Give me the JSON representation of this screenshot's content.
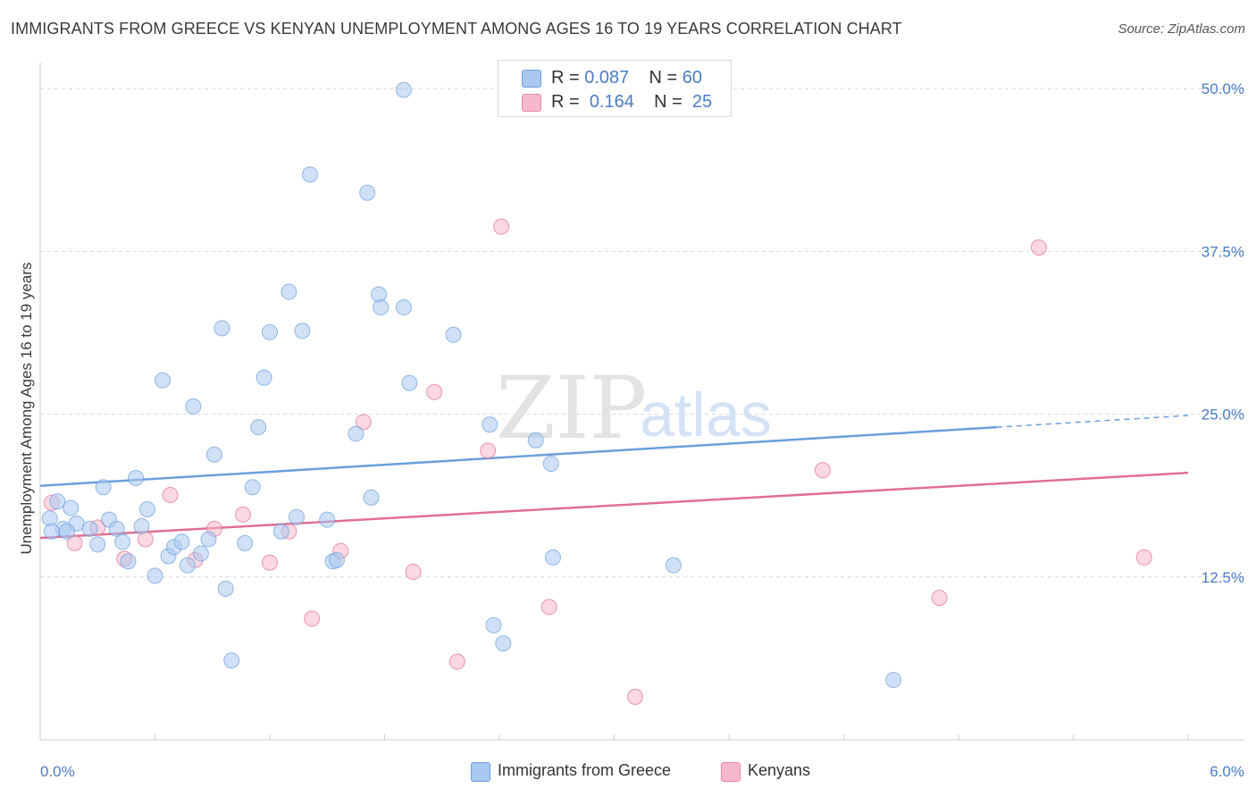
{
  "header": {
    "title": "IMMIGRANTS FROM GREECE VS KENYAN UNEMPLOYMENT AMONG AGES 16 TO 19 YEARS CORRELATION CHART",
    "source": "Source: ZipAtlas.com"
  },
  "watermark": {
    "zip": "ZIP",
    "atlas": "atlas"
  },
  "legend": {
    "rows": [
      {
        "r_label": "R = ",
        "r_value": "0.087",
        "n_label": "N = ",
        "n_value": "60",
        "color": "#a9c8f0"
      },
      {
        "r_label": "R = ",
        "r_value": "0.164",
        "n_label": "N = ",
        "n_value": "25",
        "color": "#f7b8cb"
      }
    ]
  },
  "bottom_legend": [
    {
      "label": "Immigrants from Greece",
      "color": "#a9c8f0"
    },
    {
      "label": "Kenyans",
      "color": "#f7b8cb"
    }
  ],
  "chart_data": {
    "type": "scatter",
    "title": "IMMIGRANTS FROM GREECE VS KENYAN UNEMPLOYMENT AMONG AGES 16 TO 19 YEARS CORRELATION CHART",
    "ylabel": "Unemployment Among Ages 16 to 19 years",
    "xlabel": "",
    "xlim": [
      0,
      6
    ],
    "ylim": [
      0,
      52
    ],
    "x_tick_labels": [
      {
        "value": 0,
        "label": "0.0%"
      },
      {
        "value": 6,
        "label": "6.0%"
      }
    ],
    "y_tick_labels": [
      {
        "value": 12.5,
        "label": "12.5%"
      },
      {
        "value": 25,
        "label": "25.0%"
      },
      {
        "value": 37.5,
        "label": "37.5%"
      },
      {
        "value": 50,
        "label": "50.0%"
      }
    ],
    "grid": true,
    "legend_position": "top-center",
    "series": [
      {
        "name": "Immigrants from Greece",
        "color": "#6a9edc",
        "fill": "#a9c8f0",
        "trend": {
          "x0": 0,
          "y0": 19.5,
          "x1": 5.0,
          "y1": 24.0,
          "dashed_to_x": 6.0,
          "dashed_to_y": 24.9
        },
        "points": [
          [
            0.05,
            17.0
          ],
          [
            0.09,
            18.3
          ],
          [
            0.12,
            16.2
          ],
          [
            0.16,
            17.8
          ],
          [
            0.19,
            16.6
          ],
          [
            0.26,
            16.2
          ],
          [
            0.3,
            15.0
          ],
          [
            0.33,
            19.4
          ],
          [
            0.36,
            16.9
          ],
          [
            0.4,
            16.2
          ],
          [
            0.43,
            15.2
          ],
          [
            0.46,
            13.7
          ],
          [
            0.5,
            20.1
          ],
          [
            0.53,
            16.4
          ],
          [
            0.56,
            17.7
          ],
          [
            0.6,
            12.6
          ],
          [
            0.64,
            27.6
          ],
          [
            0.67,
            14.1
          ],
          [
            0.7,
            14.8
          ],
          [
            0.74,
            15.2
          ],
          [
            0.77,
            13.4
          ],
          [
            0.8,
            25.6
          ],
          [
            0.84,
            14.3
          ],
          [
            0.88,
            15.4
          ],
          [
            0.91,
            21.9
          ],
          [
            0.95,
            31.6
          ],
          [
            0.97,
            11.6
          ],
          [
            1.0,
            6.1
          ],
          [
            1.07,
            15.1
          ],
          [
            1.11,
            19.4
          ],
          [
            1.14,
            24.0
          ],
          [
            1.17,
            27.8
          ],
          [
            1.2,
            31.3
          ],
          [
            1.26,
            16.0
          ],
          [
            1.3,
            34.4
          ],
          [
            1.34,
            17.1
          ],
          [
            1.37,
            31.4
          ],
          [
            1.41,
            43.4
          ],
          [
            1.5,
            16.9
          ],
          [
            1.53,
            13.7
          ],
          [
            1.55,
            13.8
          ],
          [
            1.65,
            23.5
          ],
          [
            1.71,
            42.0
          ],
          [
            1.73,
            18.6
          ],
          [
            1.77,
            34.2
          ],
          [
            1.78,
            33.2
          ],
          [
            1.9,
            49.9
          ],
          [
            1.9,
            33.2
          ],
          [
            1.93,
            27.4
          ],
          [
            2.16,
            31.1
          ],
          [
            2.35,
            24.2
          ],
          [
            2.37,
            8.8
          ],
          [
            2.42,
            7.4
          ],
          [
            2.59,
            23.0
          ],
          [
            2.67,
            21.2
          ],
          [
            2.68,
            14.0
          ],
          [
            3.31,
            13.4
          ],
          [
            4.46,
            4.6
          ],
          [
            0.06,
            16.0
          ],
          [
            0.14,
            16.0
          ]
        ]
      },
      {
        "name": "Kenyans",
        "color": "#e06e96",
        "fill": "#f7b8cb",
        "trend": {
          "x0": 0,
          "y0": 15.5,
          "x1": 6.0,
          "y1": 20.5
        },
        "points": [
          [
            0.06,
            18.2
          ],
          [
            0.18,
            15.1
          ],
          [
            0.3,
            16.3
          ],
          [
            0.44,
            13.9
          ],
          [
            0.55,
            15.4
          ],
          [
            0.68,
            18.8
          ],
          [
            0.81,
            13.8
          ],
          [
            0.91,
            16.2
          ],
          [
            1.06,
            17.3
          ],
          [
            1.2,
            13.6
          ],
          [
            1.3,
            16.0
          ],
          [
            1.42,
            9.3
          ],
          [
            1.57,
            14.5
          ],
          [
            1.69,
            24.4
          ],
          [
            1.95,
            12.9
          ],
          [
            2.06,
            26.7
          ],
          [
            2.18,
            6.0
          ],
          [
            2.34,
            22.2
          ],
          [
            2.41,
            39.4
          ],
          [
            2.66,
            10.2
          ],
          [
            3.11,
            3.3
          ],
          [
            4.09,
            20.7
          ],
          [
            4.7,
            10.9
          ],
          [
            5.22,
            37.8
          ],
          [
            5.77,
            14.0
          ]
        ]
      }
    ]
  }
}
